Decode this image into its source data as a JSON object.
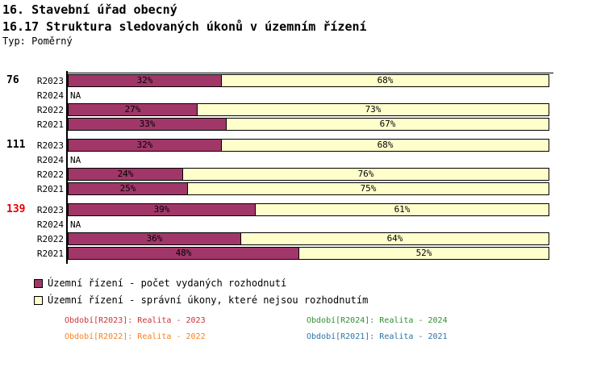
{
  "header": {
    "title1": "16. Stavební úřad obecný",
    "title2": "16.17 Struktura sledovaných úkonů v územním řízení",
    "type_label": "Typ: Poměrný"
  },
  "colors": {
    "decisions_fill": "#a13768",
    "other_fill": "#ffffcc",
    "bar_border": "#000000",
    "axis": "#000000",
    "group_label_default": "#000000",
    "group_label_highlight": "#e60000"
  },
  "chart_data": {
    "type": "bar",
    "orientation": "horizontal",
    "stacked": true,
    "unit": "%",
    "x_range": [
      0,
      100
    ],
    "grid": false,
    "na_text": "NA",
    "series_names": [
      "Územní řízení - počet vydaných rozhodnutí",
      "Územní řízení - správní úkony, které nejsou rozhodnutím"
    ],
    "groups": [
      {
        "label": "76",
        "label_color": "#000000",
        "rows": [
          {
            "period": "R2023",
            "values": [
              32,
              68
            ]
          },
          {
            "period": "R2024",
            "values": null
          },
          {
            "period": "R2022",
            "values": [
              27,
              73
            ]
          },
          {
            "period": "R2021",
            "values": [
              33,
              67
            ]
          }
        ]
      },
      {
        "label": "111",
        "label_color": "#000000",
        "rows": [
          {
            "period": "R2023",
            "values": [
              32,
              68
            ]
          },
          {
            "period": "R2024",
            "values": null
          },
          {
            "period": "R2022",
            "values": [
              24,
              76
            ]
          },
          {
            "period": "R2021",
            "values": [
              25,
              75
            ]
          }
        ]
      },
      {
        "label": "139",
        "label_color": "#e60000",
        "rows": [
          {
            "period": "R2023",
            "values": [
              39,
              61
            ]
          },
          {
            "period": "R2024",
            "values": null
          },
          {
            "period": "R2022",
            "values": [
              36,
              64
            ]
          },
          {
            "period": "R2021",
            "values": [
              48,
              52
            ]
          }
        ]
      }
    ]
  },
  "legend": {
    "items": [
      {
        "label": "Územní řízení - počet vydaných rozhodnutí",
        "color": "#a13768"
      },
      {
        "label": "Územní řízení - správní úkony, které nejsou rozhodnutím",
        "color": "#ffffcc"
      }
    ]
  },
  "footnotes": [
    {
      "text": "Období[R2023]: Realita - 2023",
      "color": "#cc3333"
    },
    {
      "text": "Období[R2024]: Realita - 2024",
      "color": "#2f8f2f"
    },
    {
      "text": "Období[R2022]: Realita - 2022",
      "color": "#f5821f"
    },
    {
      "text": "Období[R2021]: Realita - 2021",
      "color": "#2874a6"
    }
  ]
}
